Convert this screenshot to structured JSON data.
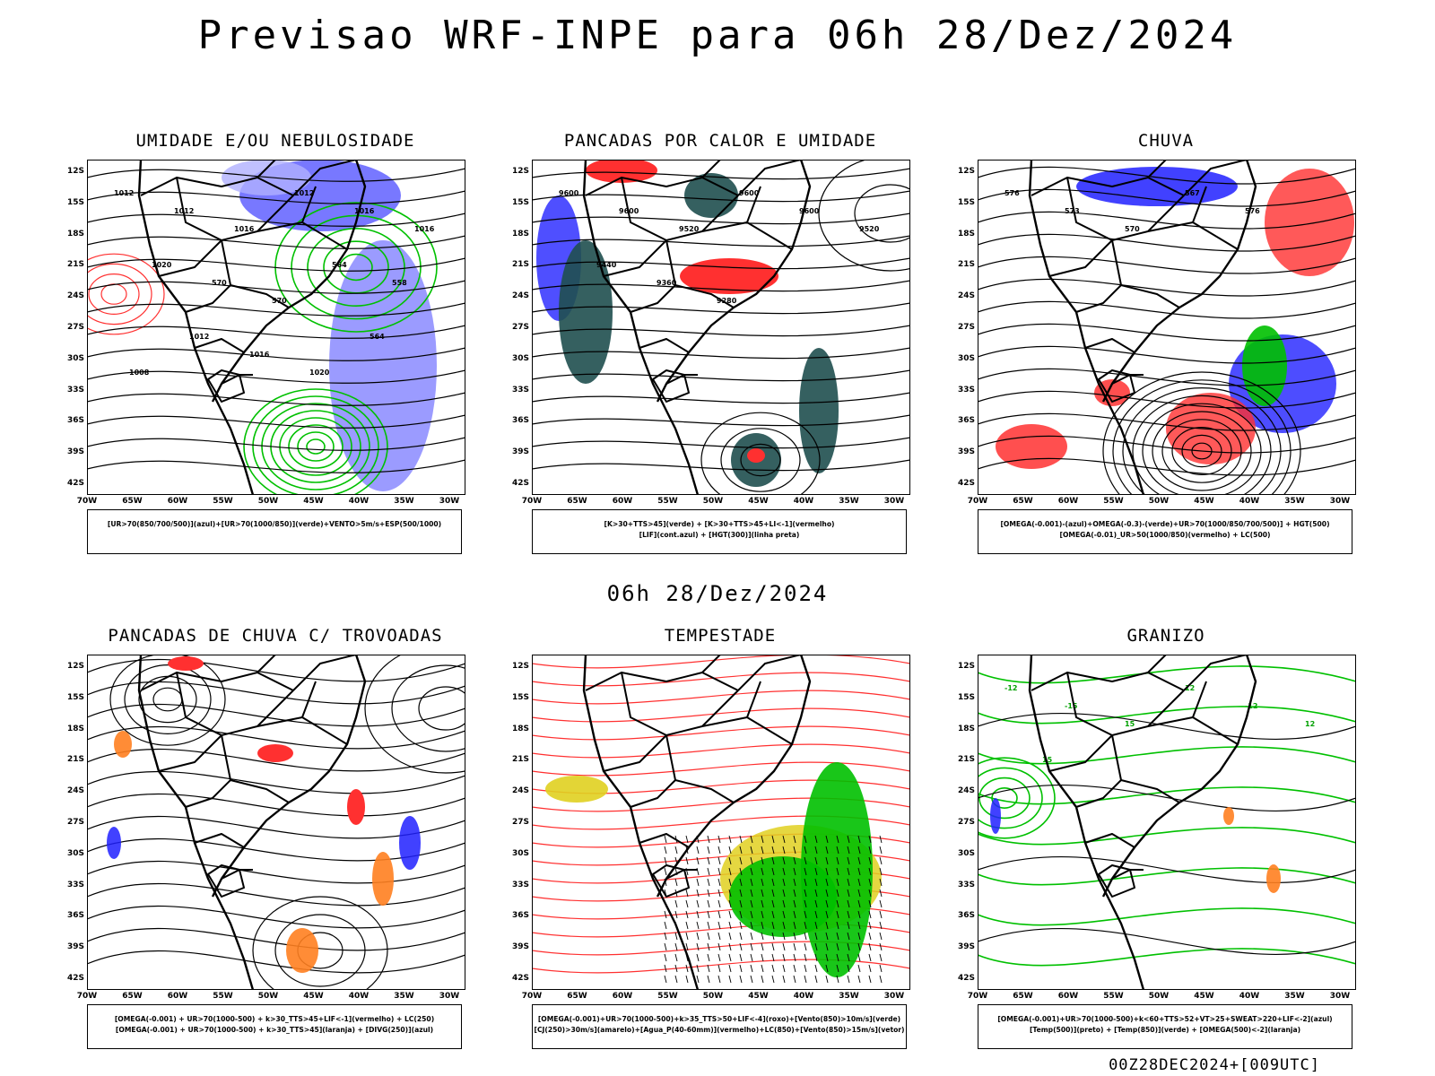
{
  "title": "Previsao WRF-INPE  para 06h 28/Dez/2024",
  "subtitle": "06h 28/Dez/2024",
  "footer": "00Z28DEC2024+[009UTC]",
  "lat_labels": [
    "12S",
    "15S",
    "18S",
    "21S",
    "24S",
    "27S",
    "30S",
    "33S",
    "36S",
    "39S",
    "42S"
  ],
  "lon_labels": [
    "70W",
    "65W",
    "60W",
    "55W",
    "50W",
    "45W",
    "40W",
    "35W",
    "30W"
  ],
  "panels": [
    {
      "title": "UMIDADE E/OU NEBULOSIDADE",
      "legend": [
        "[UR>70(850/700/500)](azul)+[UR>70(1000/850)](verde)+VENTO>5m/s+ESP(500/1000)"
      ],
      "contour_labels": [
        "1012",
        "1012",
        "1016",
        "1012",
        "1016",
        "1016",
        "1020",
        "570",
        "570",
        "564",
        "558",
        "1008",
        "1012",
        "1016",
        "1020",
        "564"
      ]
    },
    {
      "title": "PANCADAS POR CALOR E UMIDADE",
      "legend": [
        "[K>30+TTS>45](verde) + [K>30+TTS>45+LI<-1](vermelho)",
        "[LIF](cont.azul) + [HGT(300)](linha preta)"
      ],
      "contour_labels": [
        "9600",
        "9600",
        "9520",
        "9600",
        "9600",
        "9520",
        "9440",
        "9360",
        "9280"
      ]
    },
    {
      "title": "CHUVA",
      "legend": [
        "[OMEGA(-0.001)-(azul)+OMEGA(-0.3)-(verde)+UR>70(1000/850/700/500)] + HGT(500)",
        "[OMEGA(-0.01)_UR>50(1000/850)(vermelho) + LC(500)"
      ],
      "contour_labels": [
        "576",
        "573",
        "570",
        "567",
        "576"
      ]
    },
    {
      "title": "PANCADAS DE CHUVA C/ TROVOADAS",
      "legend": [
        "[OMEGA(-0.001) + UR>70(1000-500) + k>30_TTS>45+LIF<-1](vermelho) + LC(250)",
        "[OMEGA(-0.001) + UR>70(1000-500) + k>30_TTS>45](laranja) + [DIVG(250)](azul)"
      ],
      "contour_labels": []
    },
    {
      "title": "TEMPESTADE",
      "legend": [
        "[OMEGA(-0.001)+UR>70(1000-500)+k>35_TTS>50+LIF<-4](roxo)+[Vento(850)>10m/s](verde)",
        "[CJ(250)>30m/s](amarelo)+[Agua_P(40-60mm)](vermelho)+LC(850)+[Vento(850)>15m/s](vetor)"
      ],
      "contour_labels": []
    },
    {
      "title": "GRANIZO",
      "legend": [
        "[OMEGA(-0.001)+UR>70(1000-500)+k<60+TTS>52+VT>25+SWEAT>220+LIF<-2](azul)",
        "[Temp(500)](preto) + [Temp(850)](verde) + [OMEGA(500)<-2](laranja)"
      ],
      "contour_labels": [
        "-12",
        "-15",
        "15",
        "12",
        "-12",
        "12",
        "15"
      ]
    }
  ]
}
